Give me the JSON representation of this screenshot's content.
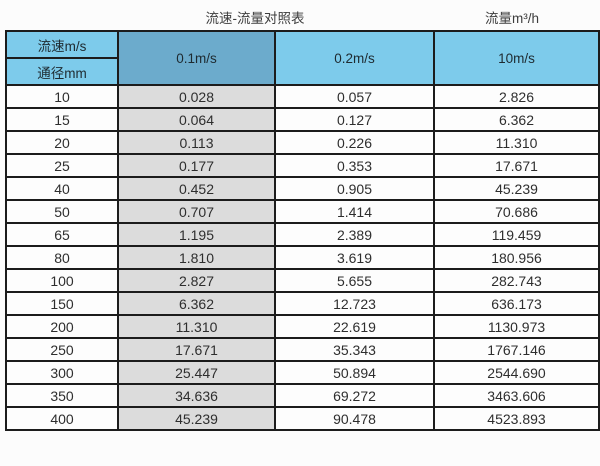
{
  "page_title": "流速-流量对照表",
  "right_label": "流量m³/h",
  "chart_data": {
    "type": "table",
    "title": "流速-流量对照表",
    "right_label": "流量m³/h",
    "corner_top": "流速m/s",
    "corner_bottom": "通径mm",
    "velocity_columns": [
      "0.1m/s",
      "0.2m/s",
      "10m/s"
    ],
    "rows": [
      {
        "dn": "10",
        "values": [
          "0.028",
          "0.057",
          "2.826"
        ]
      },
      {
        "dn": "15",
        "values": [
          "0.064",
          "0.127",
          "6.362"
        ]
      },
      {
        "dn": "20",
        "values": [
          "0.113",
          "0.226",
          "11.310"
        ]
      },
      {
        "dn": "25",
        "values": [
          "0.177",
          "0.353",
          "17.671"
        ]
      },
      {
        "dn": "40",
        "values": [
          "0.452",
          "0.905",
          "45.239"
        ]
      },
      {
        "dn": "50",
        "values": [
          "0.707",
          "1.414",
          "70.686"
        ]
      },
      {
        "dn": "65",
        "values": [
          "1.195",
          "2.389",
          "119.459"
        ]
      },
      {
        "dn": "80",
        "values": [
          "1.810",
          "3.619",
          "180.956"
        ]
      },
      {
        "dn": "100",
        "values": [
          "2.827",
          "5.655",
          "282.743"
        ]
      },
      {
        "dn": "150",
        "values": [
          "6.362",
          "12.723",
          "636.173"
        ]
      },
      {
        "dn": "200",
        "values": [
          "11.310",
          "22.619",
          "1130.973"
        ]
      },
      {
        "dn": "250",
        "values": [
          "17.671",
          "35.343",
          "1767.146"
        ]
      },
      {
        "dn": "300",
        "values": [
          "25.447",
          "50.894",
          "2544.690"
        ]
      },
      {
        "dn": "350",
        "values": [
          "34.636",
          "69.272",
          "3463.606"
        ]
      },
      {
        "dn": "400",
        "values": [
          "45.239",
          "90.478",
          "4523.893"
        ]
      }
    ]
  },
  "colors": {
    "header_light_blue": "#7dcbeb",
    "header_dark_blue": "#6cabcc",
    "gray_column": "#dcdcdc",
    "cell_white": "#fdfdfd",
    "border_color": "#1c1c1c"
  }
}
